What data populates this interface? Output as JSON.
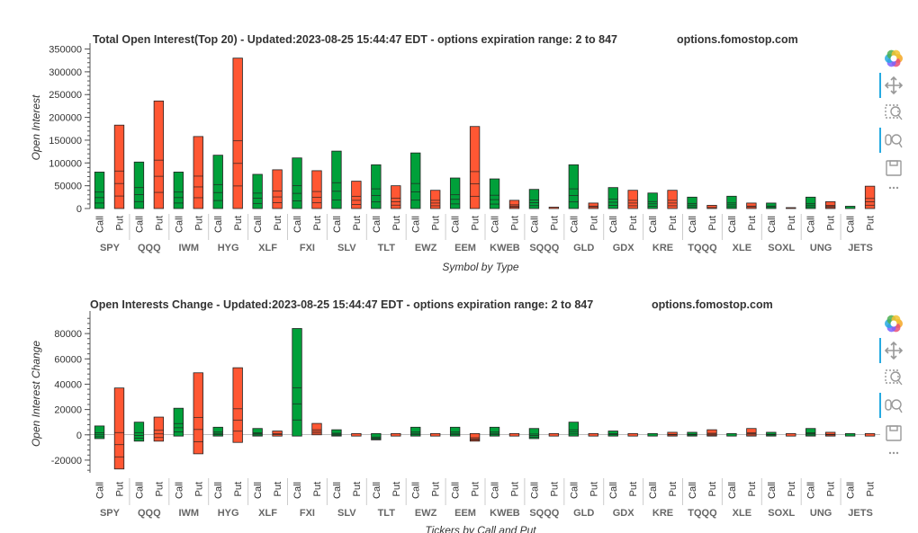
{
  "colors": {
    "call": "#00a03a",
    "put": "#ff5733",
    "stroke": "#222222",
    "axis": "#555555",
    "tool_active": "#26aae1"
  },
  "tickers": [
    "SPY",
    "QQQ",
    "IWM",
    "HYG",
    "XLF",
    "FXI",
    "SLV",
    "TLT",
    "EWZ",
    "EEM",
    "KWEB",
    "SQQQ",
    "GLD",
    "GDX",
    "KRE",
    "TQQQ",
    "XLE",
    "SOXL",
    "UNG",
    "JETS"
  ],
  "call_label": "Call",
  "put_label": "Put",
  "toolbar_icons": [
    "bokeh-logo-icon",
    "pan-icon",
    "box-zoom-icon",
    "wheel-zoom-icon",
    "save-icon",
    "more-icon"
  ],
  "chart_data": [
    {
      "type": "bar",
      "title": "Total Open Interest(Top 20) - Updated:2023-08-25 15:44:47 EDT - options expiration range: 2 to 847",
      "watermark": "options.fomostop.com",
      "ylabel": "Open Interest",
      "xlabel": "Symbol by Type",
      "ylim": [
        0,
        355000
      ],
      "yticks": [
        0,
        50000,
        100000,
        150000,
        200000,
        250000,
        300000,
        350000
      ],
      "series": [
        {
          "name": "Call",
          "values": [
            80000,
            102000,
            80000,
            117000,
            75000,
            111000,
            126000,
            96000,
            122000,
            67000,
            65000,
            42000,
            96000,
            46000,
            34000,
            25000,
            27000,
            12000,
            25000,
            5000
          ]
        },
        {
          "name": "Put",
          "values": [
            183000,
            236000,
            158000,
            330000,
            85000,
            83000,
            60000,
            50000,
            40000,
            180000,
            18000,
            3000,
            12000,
            40000,
            40000,
            7000,
            12000,
            2000,
            15000,
            49000
          ]
        }
      ]
    },
    {
      "type": "bar",
      "title": "Open Interests Change - Updated:2023-08-25 15:44:47 EDT - options expiration range: 2 to 847",
      "watermark": "options.fomostop.com",
      "ylabel": "Open Interest Change",
      "xlabel": "Tickers by Call and Put",
      "ylim": [
        -30000,
        95000
      ],
      "yticks": [
        -20000,
        0,
        20000,
        40000,
        60000,
        80000
      ],
      "series": [
        {
          "name": "Call",
          "low": [
            -3000,
            -5000,
            -1000,
            -1000,
            -1000,
            -1000,
            -1000,
            -4000,
            -1000,
            -1000,
            -1000,
            -3000,
            -1000,
            -1000,
            -1000,
            -1000,
            -1000,
            -1000,
            -1000,
            -1000
          ],
          "high": [
            7000,
            10000,
            21000,
            6000,
            5000,
            84000,
            4000,
            1000,
            6000,
            6000,
            6000,
            5000,
            10000,
            3000,
            1000,
            2000,
            1000,
            2000,
            5000,
            1000
          ]
        },
        {
          "name": "Put",
          "low": [
            -27000,
            -5000,
            -15000,
            -6000,
            -1000,
            0,
            -1000,
            -1000,
            -1000,
            -5000,
            -1000,
            -1000,
            -1000,
            -1000,
            -1000,
            -1000,
            -1000,
            -1000,
            -1000,
            -1000
          ],
          "high": [
            37000,
            14000,
            49000,
            53000,
            3000,
            9000,
            1000,
            1000,
            1000,
            1000,
            1000,
            1000,
            1000,
            1000,
            2000,
            4000,
            5000,
            1000,
            2000,
            1000
          ]
        }
      ]
    }
  ]
}
